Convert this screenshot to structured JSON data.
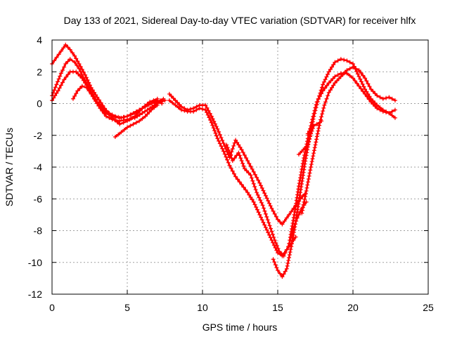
{
  "chart_data": {
    "type": "scatter",
    "title": "Day 133 of 2021, Sidereal Day-to-day VTEC variation (SDTVAR) for receiver hlfx",
    "xlabel": "GPS time / hours",
    "ylabel": "SDTVAR / TECUs",
    "xlim": [
      0,
      25
    ],
    "ylim": [
      -12,
      4
    ],
    "xticks": [
      0,
      5,
      10,
      15,
      20,
      25
    ],
    "yticks": [
      -12,
      -10,
      -8,
      -6,
      -4,
      -2,
      0,
      2,
      4
    ],
    "grid": true,
    "legend": "none",
    "color": "#ff0000",
    "marker": "plus",
    "series": [
      {
        "name": "trace-1",
        "x": [
          0.0,
          0.3,
          0.6,
          0.9,
          1.2,
          1.5,
          1.8,
          2.2,
          2.6,
          3.0,
          3.5,
          4.0,
          4.5,
          5.0,
          5.5,
          6.0,
          6.5,
          7.0,
          7.3
        ],
        "y": [
          2.5,
          2.9,
          3.3,
          3.7,
          3.4,
          3.0,
          2.5,
          1.8,
          1.0,
          0.4,
          -0.3,
          -0.9,
          -1.3,
          -1.1,
          -0.8,
          -0.3,
          0.1,
          0.2,
          0.0
        ]
      },
      {
        "name": "trace-2",
        "x": [
          0.0,
          0.3,
          0.6,
          0.9,
          1.2,
          1.5,
          1.8,
          2.1,
          2.4,
          2.7,
          3.0,
          3.3,
          3.6,
          4.0,
          4.5,
          5.0,
          5.5,
          6.0,
          6.5,
          7.0
        ],
        "y": [
          0.5,
          1.2,
          1.9,
          2.5,
          2.8,
          2.6,
          2.2,
          1.6,
          1.1,
          0.6,
          0.1,
          -0.3,
          -0.6,
          -0.8,
          -0.9,
          -0.8,
          -0.6,
          -0.3,
          0.1,
          0.3
        ]
      },
      {
        "name": "trace-3",
        "x": [
          0.0,
          0.4,
          0.8,
          1.2,
          1.6,
          2.0,
          2.4,
          2.8,
          3.2,
          3.6,
          4.0,
          4.5,
          5.0,
          5.5,
          6.0,
          6.5,
          7.0,
          7.5
        ],
        "y": [
          0.2,
          0.8,
          1.5,
          2.0,
          2.0,
          1.6,
          1.0,
          0.3,
          -0.3,
          -0.8,
          -1.0,
          -1.1,
          -1.0,
          -0.9,
          -0.6,
          -0.3,
          0.0,
          0.2
        ]
      },
      {
        "name": "trace-4",
        "x": [
          1.4,
          1.7,
          2.0,
          2.3,
          2.6,
          3.0,
          3.4,
          3.8,
          4.2,
          4.6,
          5.0,
          5.4,
          5.8,
          6.2,
          6.6,
          7.0,
          7.4
        ],
        "y": [
          0.3,
          0.8,
          1.1,
          1.0,
          0.6,
          0.1,
          -0.3,
          -0.6,
          -0.8,
          -0.9,
          -0.8,
          -0.6,
          -0.4,
          -0.2,
          0.0,
          0.1,
          0.3
        ]
      },
      {
        "name": "trace-5",
        "x": [
          4.2,
          4.6,
          5.0,
          5.4,
          5.8,
          6.2,
          6.6,
          7.0
        ],
        "y": [
          -2.1,
          -1.8,
          -1.5,
          -1.3,
          -1.1,
          -0.8,
          -0.4,
          -0.1
        ]
      },
      {
        "name": "trace-6",
        "x": [
          7.8,
          8.2,
          8.6,
          9.0,
          9.4,
          9.8,
          10.2,
          10.6,
          11.0,
          11.4,
          11.8,
          12.2,
          12.6,
          13.0,
          13.4,
          13.8,
          14.2,
          14.6,
          15.0,
          15.3,
          15.6,
          15.9,
          16.2,
          16.5,
          16.8
        ],
        "y": [
          0.6,
          0.2,
          -0.2,
          -0.4,
          -0.3,
          -0.1,
          -0.1,
          -0.8,
          -1.6,
          -2.5,
          -3.4,
          -2.3,
          -2.9,
          -3.6,
          -4.3,
          -5.0,
          -5.8,
          -6.6,
          -7.3,
          -7.6,
          -7.2,
          -6.8,
          -6.4,
          -6.0,
          -5.7
        ]
      },
      {
        "name": "trace-7",
        "x": [
          7.8,
          8.2,
          8.6,
          9.0,
          9.4,
          9.8,
          10.2,
          10.6,
          11.0,
          11.4,
          11.8,
          12.2,
          12.6,
          13.0,
          13.4,
          13.8,
          14.2,
          14.6,
          15.0,
          15.3,
          15.6,
          15.9,
          16.2
        ],
        "y": [
          0.2,
          -0.1,
          -0.4,
          -0.5,
          -0.5,
          -0.3,
          -0.4,
          -1.2,
          -2.2,
          -3.0,
          -3.9,
          -4.6,
          -5.1,
          -5.6,
          -6.2,
          -7.0,
          -7.8,
          -8.6,
          -9.4,
          -9.6,
          -9.2,
          -8.8,
          -8.4
        ]
      },
      {
        "name": "trace-8",
        "x": [
          11.6,
          12.0,
          12.4,
          12.8,
          13.2,
          13.6,
          14.0,
          14.4,
          14.8,
          15.1,
          15.4,
          15.7,
          16.0,
          16.3,
          16.6,
          16.9
        ],
        "y": [
          -2.6,
          -3.6,
          -3.1,
          -4.1,
          -4.5,
          -5.6,
          -6.4,
          -7.5,
          -8.6,
          -9.3,
          -9.6,
          -9.0,
          -8.0,
          -7.2,
          -6.6,
          -6.2
        ]
      },
      {
        "name": "trace-9",
        "x": [
          14.7,
          15.0,
          15.3,
          15.6,
          15.9,
          16.2,
          16.5,
          16.8,
          17.1,
          17.4,
          17.7,
          18.0,
          18.4,
          18.8,
          19.2,
          19.6,
          20.0,
          20.4,
          20.8,
          21.2,
          21.6,
          22.0,
          22.4,
          22.8
        ],
        "y": [
          -9.8,
          -10.5,
          -10.9,
          -10.4,
          -9.0,
          -7.4,
          -5.6,
          -3.8,
          -2.2,
          -0.8,
          0.3,
          1.2,
          2.0,
          2.6,
          2.8,
          2.7,
          2.5,
          1.7,
          0.9,
          0.3,
          -0.1,
          -0.4,
          -0.6,
          -0.9
        ]
      },
      {
        "name": "trace-10",
        "x": [
          15.8,
          16.1,
          16.4,
          16.7,
          17.0,
          17.3,
          17.6,
          18.0,
          18.4,
          18.8,
          19.2,
          19.6,
          20.0,
          20.4,
          20.8,
          21.2,
          21.6,
          22.0,
          22.4,
          22.8
        ],
        "y": [
          -8.6,
          -7.0,
          -5.2,
          -3.6,
          -2.2,
          -1.0,
          0.1,
          0.8,
          1.3,
          1.7,
          1.9,
          1.9,
          1.6,
          1.1,
          0.6,
          0.1,
          -0.3,
          -0.5,
          -0.6,
          -0.4
        ]
      },
      {
        "name": "trace-11",
        "x": [
          16.6,
          16.9,
          17.2,
          17.5,
          17.8,
          18.1,
          18.4,
          18.8,
          19.2,
          19.6,
          20.0,
          20.4,
          20.8,
          21.2,
          21.6,
          22.0,
          22.4,
          22.8
        ],
        "y": [
          -6.9,
          -5.5,
          -4.0,
          -2.6,
          -1.2,
          -0.1,
          0.7,
          1.3,
          1.7,
          2.1,
          2.3,
          2.1,
          1.6,
          0.9,
          0.5,
          0.3,
          0.4,
          0.2
        ]
      },
      {
        "name": "trace-12",
        "x": [
          16.4,
          16.6,
          16.8,
          17.0,
          17.2,
          17.4
        ],
        "y": [
          -3.2,
          -3.0,
          -2.8,
          -2.6,
          -1.9,
          -1.4
        ]
      },
      {
        "name": "trace-13",
        "x": [
          17.0,
          17.3,
          17.6,
          17.9
        ],
        "y": [
          -1.9,
          -1.4,
          -1.3,
          -1.1
        ]
      }
    ]
  }
}
